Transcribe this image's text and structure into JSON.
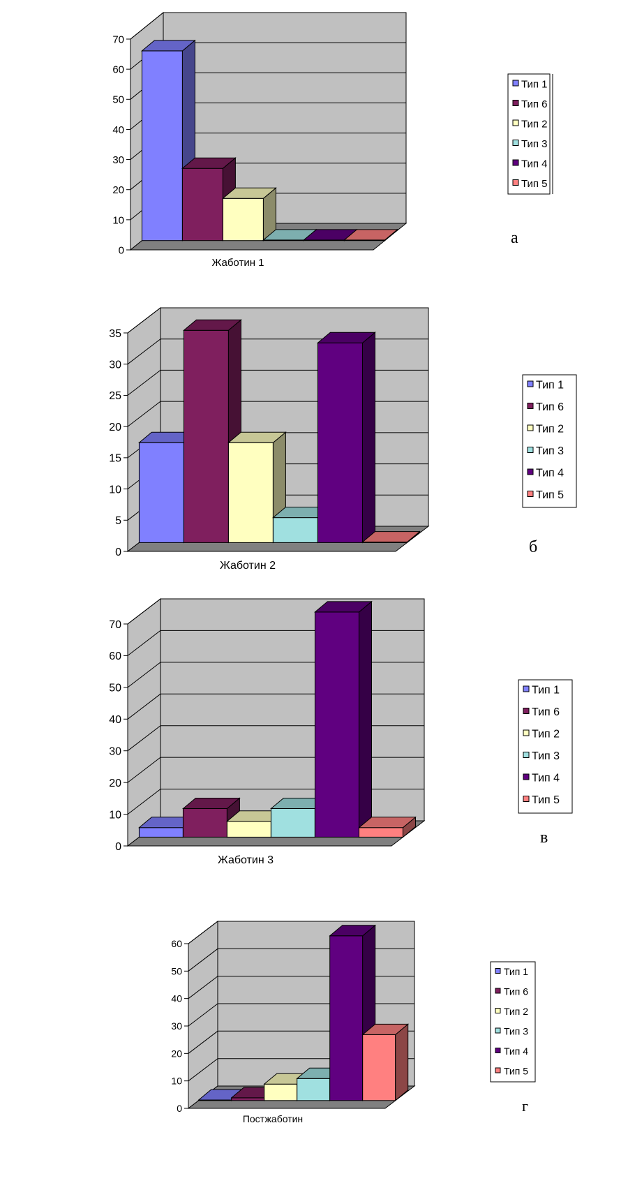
{
  "series_colors": {
    "Тип 1": "#8080ff",
    "Тип 6": "#7f1f5e",
    "Тип 2": "#ffffc0",
    "Тип 3": "#a0e0e0",
    "Тип 4": "#600080",
    "Тип 5": "#ff8080"
  },
  "chart_data": [
    {
      "type": "bar",
      "categories": [
        "Жаботин 1"
      ],
      "series": [
        {
          "name": "Тип 1",
          "values": [
            63
          ]
        },
        {
          "name": "Тип 6",
          "values": [
            24
          ]
        },
        {
          "name": "Тип 2",
          "values": [
            14
          ]
        },
        {
          "name": "Тип 3",
          "values": [
            0
          ]
        },
        {
          "name": "Тип 4",
          "values": [
            0
          ]
        },
        {
          "name": "Тип 5",
          "values": [
            0
          ]
        }
      ],
      "ylim": [
        0,
        70
      ],
      "yticks": [
        0,
        10,
        20,
        30,
        40,
        50,
        60,
        70
      ],
      "panel_label": "а",
      "legend": "right",
      "grid": true,
      "three_d": true
    },
    {
      "type": "bar",
      "categories": [
        "Жаботин 2"
      ],
      "series": [
        {
          "name": "Тип 1",
          "values": [
            16
          ]
        },
        {
          "name": "Тип 6",
          "values": [
            34
          ]
        },
        {
          "name": "Тип 2",
          "values": [
            16
          ]
        },
        {
          "name": "Тип 3",
          "values": [
            4
          ]
        },
        {
          "name": "Тип 4",
          "values": [
            32
          ]
        },
        {
          "name": "Тип 5",
          "values": [
            0
          ]
        }
      ],
      "ylim": [
        0,
        35
      ],
      "yticks": [
        0,
        5,
        10,
        15,
        20,
        25,
        30,
        35
      ],
      "panel_label": "б",
      "legend": "right",
      "grid": true,
      "three_d": true
    },
    {
      "type": "bar",
      "categories": [
        "Жаботин 3"
      ],
      "series": [
        {
          "name": "Тип 1",
          "values": [
            3
          ]
        },
        {
          "name": "Тип 6",
          "values": [
            9
          ]
        },
        {
          "name": "Тип 2",
          "values": [
            5
          ]
        },
        {
          "name": "Тип 3",
          "values": [
            9
          ]
        },
        {
          "name": "Тип 4",
          "values": [
            71
          ]
        },
        {
          "name": "Тип 5",
          "values": [
            3
          ]
        }
      ],
      "ylim": [
        0,
        70
      ],
      "yticks": [
        0,
        10,
        20,
        30,
        40,
        50,
        60,
        70
      ],
      "panel_label": "в",
      "legend": "right",
      "grid": true,
      "three_d": true
    },
    {
      "type": "bar",
      "categories": [
        "Постжаботин"
      ],
      "series": [
        {
          "name": "Тип 1",
          "values": [
            0
          ]
        },
        {
          "name": "Тип 6",
          "values": [
            1
          ]
        },
        {
          "name": "Тип 2",
          "values": [
            6
          ]
        },
        {
          "name": "Тип 3",
          "values": [
            8
          ]
        },
        {
          "name": "Тип 4",
          "values": [
            60
          ]
        },
        {
          "name": "Тип 5",
          "values": [
            24
          ]
        }
      ],
      "ylim": [
        0,
        60
      ],
      "yticks": [
        0,
        10,
        20,
        30,
        40,
        50,
        60
      ],
      "panel_label": "г",
      "legend": "right",
      "grid": true,
      "three_d": true
    }
  ]
}
